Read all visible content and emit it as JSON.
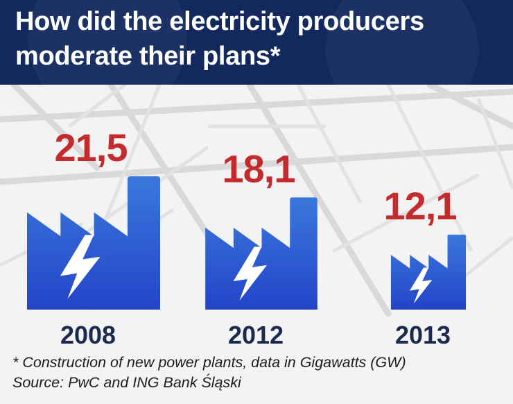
{
  "title_line1": "How did the electricity producers",
  "title_line2": "moderate their plans*",
  "footnote": "* Construction of new power plants, data in Gigawatts (GW)",
  "source": "Source: PwC and ING Bank Śląski",
  "colors": {
    "header": "#13295e",
    "value": "#c42b2c",
    "factory_top": "#3a78dc",
    "factory_bottom": "#2344c8",
    "bolt": "#ffffff",
    "year": "#1b2a4e"
  },
  "chart_data": {
    "type": "bar",
    "categories": [
      "2008",
      "2012",
      "2013"
    ],
    "values": [
      21.5,
      18.1,
      12.1
    ],
    "value_labels": [
      "21,5",
      "18,1",
      "12,1"
    ],
    "unit": "GW",
    "marker": "factory-with-lightning-bolt"
  }
}
